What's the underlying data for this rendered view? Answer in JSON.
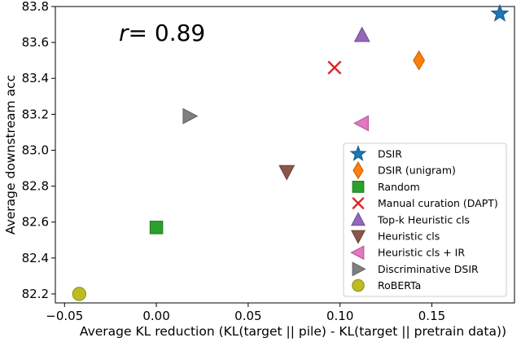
{
  "chart_data": {
    "type": "scatter",
    "title": "",
    "xlabel": "Average KL reduction (KL(target || pile) - KL(target || pretrain data))",
    "ylabel": "Average downstream acc",
    "xlim": [
      -0.055,
      0.195
    ],
    "ylim": [
      82.15,
      83.8
    ],
    "xticks": [
      -0.05,
      0.0,
      0.05,
      0.1,
      0.15
    ],
    "xtick_labels": [
      "−0.05",
      "0.00",
      "0.05",
      "0.10",
      "0.15"
    ],
    "yticks": [
      82.2,
      82.4,
      82.6,
      82.8,
      83.0,
      83.2,
      83.4,
      83.6,
      83.8
    ],
    "ytick_labels": [
      "82.2",
      "82.4",
      "82.6",
      "82.8",
      "83.0",
      "83.2",
      "83.4",
      "83.6",
      "83.8"
    ],
    "grid": false,
    "legend_position": "lower-right",
    "annotation": {
      "prefix": "r",
      "text": "= 0.89"
    },
    "series": [
      {
        "name": "DSIR",
        "marker": "star",
        "color": "#1f77b4",
        "x": 0.187,
        "y": 83.76
      },
      {
        "name": "DSIR (unigram)",
        "marker": "diamond",
        "color": "#ff7f0e",
        "x": 0.143,
        "y": 83.5
      },
      {
        "name": "Random",
        "marker": "square",
        "color": "#2ca02c",
        "x": 0.0,
        "y": 82.57
      },
      {
        "name": "Manual curation (DAPT)",
        "marker": "x",
        "color": "#d62728",
        "x": 0.097,
        "y": 83.46
      },
      {
        "name": "Top-k Heuristic cls",
        "marker": "triangle-up",
        "color": "#9467bd",
        "x": 0.112,
        "y": 83.64
      },
      {
        "name": "Heuristic cls",
        "marker": "triangle-down",
        "color": "#8c564b",
        "x": 0.071,
        "y": 82.88
      },
      {
        "name": "Heuristic cls + IR",
        "marker": "triangle-left",
        "color": "#e377c2",
        "x": 0.112,
        "y": 83.15
      },
      {
        "name": "Discriminative DSIR",
        "marker": "triangle-right",
        "color": "#7f7f7f",
        "x": 0.018,
        "y": 83.19
      },
      {
        "name": "RoBERTa",
        "marker": "circle",
        "color": "#bcbd22",
        "x": -0.042,
        "y": 82.2
      }
    ]
  }
}
